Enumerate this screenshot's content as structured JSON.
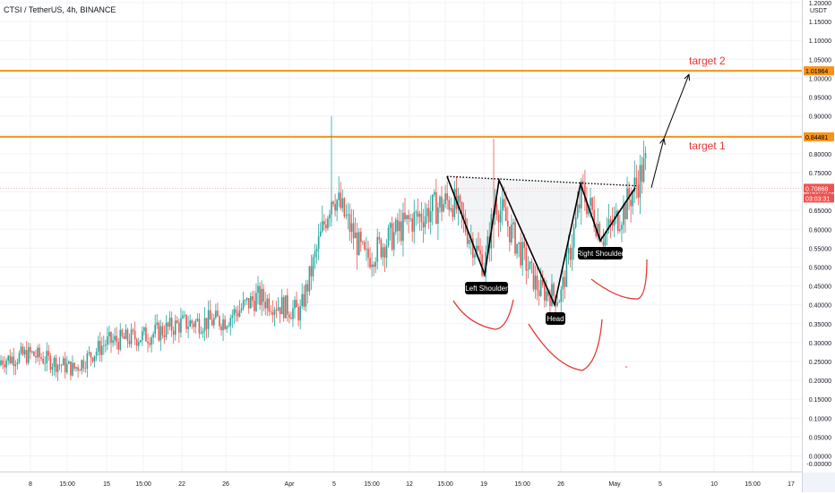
{
  "header": {
    "title": "CTSI / TetherUS, 4h, BINANCE"
  },
  "price_axis": {
    "unit": "USDT",
    "tick_labels": [
      "1.20000",
      "1.15000",
      "1.10000",
      "1.05000",
      "1.00000",
      "0.95000",
      "0.90000",
      "0.85000",
      "0.80000",
      "0.75000",
      "0.70000",
      "0.65000",
      "0.60000",
      "0.55000",
      "0.50000",
      "0.45000",
      "0.40000",
      "0.35000",
      "0.30000",
      "0.25000",
      "0.20000",
      "0.15000",
      "0.10000",
      "0.05000",
      "0.00000",
      "-0.00000"
    ],
    "target2_badge": "1.01964",
    "target1_badge": "0.84481",
    "price_badge": "0.70868",
    "countdown_badge": "03:03:31"
  },
  "time_axis": {
    "tick_labels": [
      "8",
      "15:00",
      "15",
      "15:00",
      "22",
      "26",
      "Apr",
      "5",
      "15:00",
      "12",
      "15:00",
      "19",
      "15:00",
      "26",
      "May",
      "5",
      "10",
      "15:00",
      "17"
    ]
  },
  "annotations": {
    "target2": "target 2",
    "target1": "target 1",
    "left_shoulder": "Left Shoulder",
    "head": "Head",
    "right_shoulder": "Right Shoulder"
  },
  "colors": {
    "up": "#26a69a",
    "down": "#ef5350",
    "target_line": "#f7931a",
    "target_text": "#e53935",
    "curve": "#e53935",
    "label_bg": "#000000"
  },
  "chart_data": {
    "type": "candlestick",
    "symbol": "CTSI / TetherUS",
    "interval": "4h",
    "exchange": "BINANCE",
    "ylim": [
      -0.02,
      1.2
    ],
    "y_unit": "USDT",
    "horizontal_levels": [
      {
        "label": "target 2",
        "value": 1.01964
      },
      {
        "label": "target 1",
        "value": 0.84481
      }
    ],
    "last_price": 0.70868,
    "neckline_value": 0.72,
    "pattern": {
      "name": "inverse head and shoulders",
      "left_shoulder_low": 0.48,
      "head_low": 0.4,
      "right_shoulder_low": 0.57
    },
    "price_path_approx": [
      {
        "date": "Mar 3",
        "close": 0.24
      },
      {
        "date": "Mar 8",
        "close": 0.27
      },
      {
        "date": "Mar 12",
        "close": 0.23
      },
      {
        "date": "Mar 15",
        "close": 0.3
      },
      {
        "date": "Mar 19",
        "close": 0.32
      },
      {
        "date": "Mar 22",
        "close": 0.35
      },
      {
        "date": "Mar 26",
        "close": 0.36
      },
      {
        "date": "Mar 29",
        "close": 0.42
      },
      {
        "date": "Apr 2",
        "close": 0.38
      },
      {
        "date": "Apr 5",
        "close": 0.7
      },
      {
        "date": "Apr 8",
        "close": 0.52
      },
      {
        "date": "Apr 12",
        "close": 0.62
      },
      {
        "date": "Apr 16",
        "close": 0.68
      },
      {
        "date": "Apr 19",
        "close": 0.5
      },
      {
        "date": "Apr 20",
        "close": 0.68
      },
      {
        "date": "Apr 24",
        "close": 0.44
      },
      {
        "date": "Apr 26",
        "close": 0.42
      },
      {
        "date": "Apr 28",
        "close": 0.7
      },
      {
        "date": "Apr 30",
        "close": 0.58
      },
      {
        "date": "May 2",
        "close": 0.66
      },
      {
        "date": "May 4",
        "close": 0.78
      },
      {
        "date": "May 5",
        "close": 0.70868
      }
    ]
  }
}
